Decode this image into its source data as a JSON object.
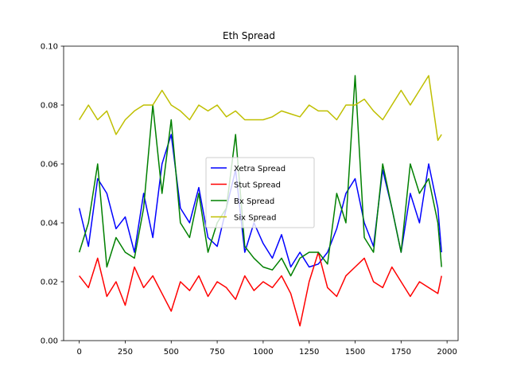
{
  "chart_data": {
    "type": "line",
    "title": "Eth Spread",
    "xlabel": "",
    "ylabel": "",
    "xlim": [
      -85,
      2060
    ],
    "ylim": [
      0.0,
      0.1
    ],
    "x_ticks": [
      0,
      250,
      500,
      750,
      1000,
      1250,
      1500,
      1750,
      2000
    ],
    "y_ticks": [
      0.0,
      0.02,
      0.04,
      0.06,
      0.08,
      0.1
    ],
    "x_tick_labels": [
      "0",
      "250",
      "500",
      "750",
      "1000",
      "1250",
      "1500",
      "1750",
      "2000"
    ],
    "y_tick_labels": [
      "0.00",
      "0.02",
      "0.04",
      "0.06",
      "0.08",
      "0.10"
    ],
    "grid": false,
    "legend_position": "center",
    "x": [
      0,
      50,
      100,
      150,
      200,
      250,
      300,
      350,
      400,
      450,
      500,
      550,
      600,
      650,
      700,
      750,
      800,
      850,
      900,
      950,
      1000,
      1050,
      1100,
      1150,
      1200,
      1250,
      1300,
      1350,
      1400,
      1450,
      1500,
      1550,
      1600,
      1650,
      1700,
      1750,
      1800,
      1850,
      1900,
      1950,
      1970
    ],
    "series": [
      {
        "name": "Xetra Spread",
        "color": "#0000ff",
        "values": [
          0.045,
          0.032,
          0.055,
          0.05,
          0.038,
          0.042,
          0.03,
          0.05,
          0.035,
          0.06,
          0.07,
          0.045,
          0.04,
          0.052,
          0.035,
          0.032,
          0.045,
          0.058,
          0.03,
          0.04,
          0.033,
          0.028,
          0.036,
          0.025,
          0.03,
          0.025,
          0.026,
          0.03,
          0.038,
          0.05,
          0.055,
          0.04,
          0.032,
          0.058,
          0.045,
          0.03,
          0.05,
          0.04,
          0.06,
          0.045,
          0.03
        ]
      },
      {
        "name": "Stut Spread",
        "color": "#ff0000",
        "values": [
          0.022,
          0.018,
          0.028,
          0.015,
          0.02,
          0.012,
          0.025,
          0.018,
          0.022,
          0.016,
          0.01,
          0.02,
          0.017,
          0.022,
          0.015,
          0.02,
          0.018,
          0.014,
          0.022,
          0.017,
          0.02,
          0.018,
          0.022,
          0.016,
          0.005,
          0.02,
          0.03,
          0.018,
          0.015,
          0.022,
          0.025,
          0.028,
          0.02,
          0.018,
          0.025,
          0.02,
          0.015,
          0.02,
          0.018,
          0.016,
          0.022
        ]
      },
      {
        "name": "Bx Spread",
        "color": "#008000",
        "values": [
          0.03,
          0.04,
          0.06,
          0.025,
          0.035,
          0.03,
          0.028,
          0.045,
          0.08,
          0.05,
          0.075,
          0.04,
          0.035,
          0.05,
          0.03,
          0.04,
          0.045,
          0.07,
          0.032,
          0.028,
          0.025,
          0.024,
          0.028,
          0.022,
          0.028,
          0.03,
          0.03,
          0.026,
          0.05,
          0.04,
          0.09,
          0.035,
          0.03,
          0.06,
          0.045,
          0.03,
          0.06,
          0.05,
          0.055,
          0.04,
          0.025
        ]
      },
      {
        "name": "Six Spread",
        "color": "#bfbf00",
        "values": [
          0.075,
          0.08,
          0.075,
          0.078,
          0.07,
          0.075,
          0.078,
          0.08,
          0.08,
          0.085,
          0.08,
          0.078,
          0.075,
          0.08,
          0.078,
          0.08,
          0.076,
          0.078,
          0.075,
          0.075,
          0.075,
          0.076,
          0.078,
          0.077,
          0.076,
          0.08,
          0.078,
          0.078,
          0.075,
          0.08,
          0.08,
          0.082,
          0.078,
          0.075,
          0.08,
          0.085,
          0.08,
          0.085,
          0.09,
          0.068,
          0.07
        ]
      }
    ]
  }
}
